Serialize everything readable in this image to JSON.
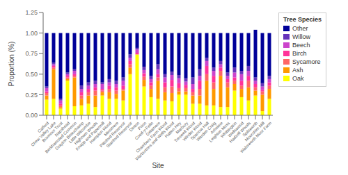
{
  "chart_data": {
    "type": "bar",
    "stacked": true,
    "grid": false,
    "legend": "right",
    "legend_title": "Tree Species",
    "xlabel": "Site",
    "ylabel": "Proportion (%)",
    "categories": [
      "Catford",
      "Chew Valley Lake",
      "Boxmoor Trust",
      "Napshead",
      "Berkhamsted Common",
      "Drayton Beauchamp",
      "Little Witcombe",
      "Highnam Woods",
      "Knapp and Papermill",
      "Hampton Wood",
      "Minsmere",
      "Pittsford Reservoir",
      "Stanford Reservoir",
      "Dinton",
      "Prion",
      "Coed-y-Felin",
      "Delamere",
      "Chambers Farm Wood",
      "Warburtons and Wells Wood",
      "Hatton Hey",
      "Marbury",
      "Treswell Wood",
      "Winder Wood",
      "Sparrow Hall",
      "Warden Craig",
      "Arholme",
      "Leighton Moss",
      "Whittington",
      "Wellswood",
      "Hadzell Woods",
      "Spilsworth",
      "Moorshim Mill",
      "Wabsworth Moor Farm"
    ],
    "series": [
      {
        "name": "Oak",
        "color": "#FFFF00",
        "values": [
          0.19,
          0.2,
          0.08,
          0.42,
          0.11,
          0.12,
          0.14,
          0.1,
          0.24,
          0.2,
          0.2,
          0.18,
          0.5,
          0.74,
          0.35,
          0.22,
          0.2,
          0.18,
          0.17,
          0.25,
          0.25,
          0.14,
          0.14,
          0.12,
          0.12,
          0.1,
          0.1,
          0.3,
          0.22,
          0.18,
          0.24,
          0.05,
          0.2
        ]
      },
      {
        "name": "Ash",
        "color": "#FF9900",
        "values": [
          0.05,
          0.36,
          0.02,
          0.02,
          0.35,
          0.08,
          0.1,
          0.14,
          0.04,
          0.08,
          0.06,
          0.12,
          0.08,
          0.0,
          0.08,
          0.1,
          0.22,
          0.1,
          0.1,
          0.04,
          0.04,
          0.1,
          0.1,
          0.3,
          0.2,
          0.38,
          0.24,
          0.08,
          0.1,
          0.16,
          0.06,
          0.2,
          0.12
        ]
      },
      {
        "name": "Sycamore",
        "color": "#FF6666",
        "values": [
          0.03,
          0.02,
          0.02,
          0.02,
          0.02,
          0.04,
          0.04,
          0.06,
          0.02,
          0.04,
          0.04,
          0.02,
          0.04,
          0.0,
          0.04,
          0.04,
          0.04,
          0.06,
          0.08,
          0.04,
          0.04,
          0.04,
          0.08,
          0.08,
          0.08,
          0.06,
          0.06,
          0.04,
          0.04,
          0.08,
          0.04,
          0.04,
          0.04
        ]
      },
      {
        "name": "Birch",
        "color": "#FF3399",
        "values": [
          0.02,
          0.02,
          0.02,
          0.02,
          0.02,
          0.04,
          0.04,
          0.04,
          0.02,
          0.04,
          0.04,
          0.04,
          0.04,
          0.02,
          0.04,
          0.04,
          0.04,
          0.06,
          0.08,
          0.06,
          0.04,
          0.04,
          0.1,
          0.1,
          0.08,
          0.04,
          0.04,
          0.04,
          0.06,
          0.06,
          0.04,
          0.02,
          0.04
        ]
      },
      {
        "name": "Beech",
        "color": "#CC44CC",
        "values": [
          0.04,
          0.02,
          0.04,
          0.02,
          0.04,
          0.04,
          0.04,
          0.04,
          0.06,
          0.04,
          0.04,
          0.06,
          0.04,
          0.04,
          0.04,
          0.04,
          0.06,
          0.06,
          0.06,
          0.06,
          0.04,
          0.06,
          0.06,
          0.06,
          0.06,
          0.04,
          0.04,
          0.06,
          0.08,
          0.06,
          0.04,
          0.04,
          0.04
        ]
      },
      {
        "name": "Willow",
        "color": "#6633BB",
        "values": [
          0.02,
          0.02,
          0.02,
          0.02,
          0.02,
          0.04,
          0.04,
          0.04,
          0.02,
          0.04,
          0.04,
          0.04,
          0.04,
          0.02,
          0.04,
          0.04,
          0.06,
          0.04,
          0.04,
          0.04,
          0.04,
          0.08,
          0.08,
          0.04,
          0.04,
          0.04,
          0.04,
          0.06,
          0.04,
          0.06,
          0.04,
          0.04,
          0.04
        ]
      },
      {
        "name": "Other",
        "color": "#000099",
        "values": [
          0.65,
          0.36,
          0.8,
          0.48,
          0.44,
          0.64,
          0.6,
          0.58,
          0.6,
          0.56,
          0.58,
          0.54,
          0.26,
          0.18,
          0.41,
          0.52,
          0.38,
          0.5,
          0.47,
          0.51,
          0.55,
          0.54,
          0.44,
          0.3,
          0.42,
          0.34,
          0.48,
          0.42,
          0.46,
          0.4,
          0.58,
          0.61,
          0.52
        ]
      }
    ],
    "ylim": [
      0,
      1.25
    ],
    "yticks": [
      {
        "value": 0,
        "label": "0.00"
      },
      {
        "value": 0.25,
        "label": "0.25"
      },
      {
        "value": 0.5,
        "label": "0.50"
      },
      {
        "value": 0.75,
        "label": "0.75"
      },
      {
        "value": 1,
        "label": "1.00"
      },
      {
        "value": 1.25,
        "label": "1.25"
      }
    ]
  }
}
